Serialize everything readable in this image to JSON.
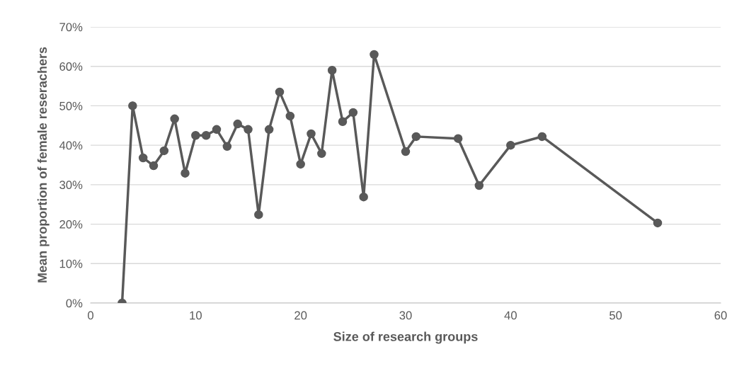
{
  "chart_data": {
    "type": "line",
    "xlabel": "Size of research groups",
    "ylabel": "Mean proportion of female reserachers",
    "x": [
      3,
      4,
      5,
      6,
      7,
      8,
      9,
      10,
      11,
      12,
      13,
      14,
      15,
      16,
      17,
      18,
      19,
      20,
      21,
      22,
      23,
      24,
      25,
      26,
      27,
      30,
      31,
      35,
      37,
      40,
      43,
      54
    ],
    "series": [
      {
        "color": "#595959",
        "values": [
          0,
          50,
          36.8,
          34.8,
          38.6,
          46.7,
          32.9,
          42.5,
          42.5,
          44,
          39.7,
          45.4,
          44,
          22.4,
          44,
          53.5,
          47.4,
          35.2,
          42.9,
          37.9,
          59,
          46,
          48.3,
          26.9,
          63,
          38.4,
          42.2,
          41.7,
          29.8,
          40,
          42.2,
          20.3
        ]
      }
    ],
    "xlim": [
      0,
      60
    ],
    "xticks": [
      0,
      10,
      20,
      30,
      40,
      50,
      60
    ],
    "ylim": [
      0,
      70
    ],
    "yticks": [
      {
        "value": 0,
        "label": "0%"
      },
      {
        "value": 10,
        "label": "10%"
      },
      {
        "value": 20,
        "label": "20%"
      },
      {
        "value": 30,
        "label": "30%"
      },
      {
        "value": 40,
        "label": "40%"
      },
      {
        "value": 50,
        "label": "50%"
      },
      {
        "value": 60,
        "label": "60%"
      },
      {
        "value": 70,
        "label": "70%"
      }
    ],
    "grid": "y",
    "marker": "circle",
    "line_style": "solid",
    "legend": false
  }
}
